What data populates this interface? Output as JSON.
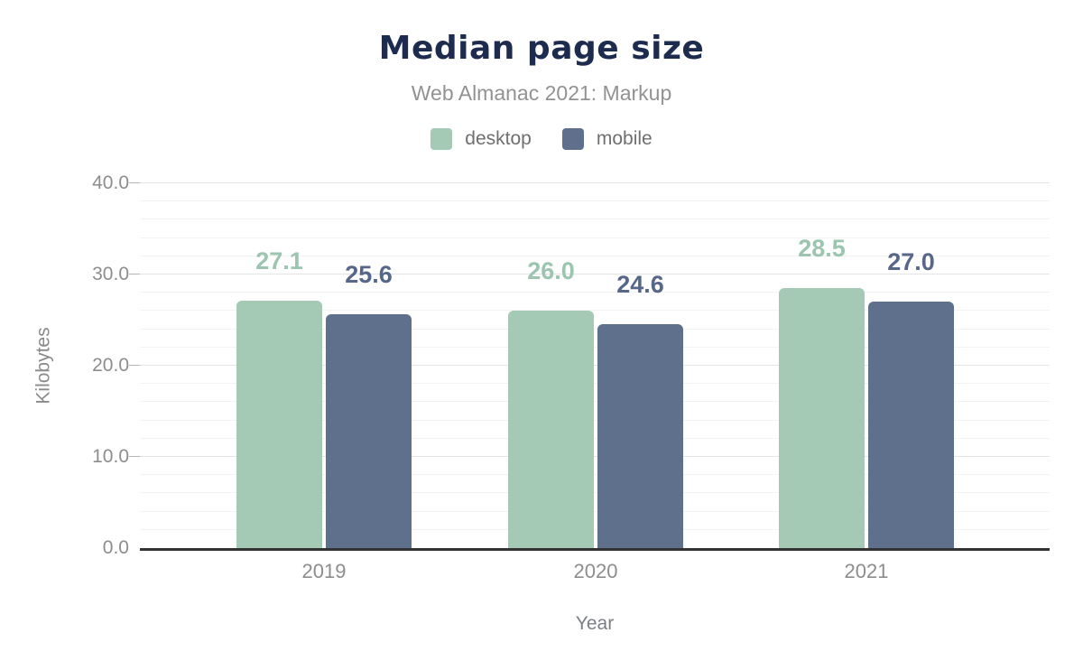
{
  "header": {
    "title": "Median page size",
    "subtitle": "Web Almanac 2021: Markup"
  },
  "chart_data": {
    "type": "bar",
    "title": "Median page size",
    "subtitle": "Web Almanac 2021: Markup",
    "categories": [
      "2019",
      "2020",
      "2021"
    ],
    "series": [
      {
        "name": "desktop",
        "color": "#a4c9b5",
        "label_color": "#9cc5b0",
        "values": [
          27.1,
          26.0,
          28.5
        ],
        "label_strings": [
          "27.1",
          "26.0",
          "28.5"
        ]
      },
      {
        "name": "mobile",
        "color": "#5f708c",
        "label_color": "#57678a",
        "values": [
          25.6,
          24.6,
          27.0
        ],
        "label_strings": [
          "25.6",
          "24.6",
          "27.0"
        ]
      }
    ],
    "xlabel": "Year",
    "ylabel": "Kilobytes",
    "ylim": [
      0,
      40
    ],
    "y_major_ticks": [
      0,
      10,
      20,
      30,
      40
    ],
    "y_tick_labels": [
      "0.0",
      "10.0",
      "20.0",
      "30.0",
      "40.0"
    ],
    "y_minor_step": 2,
    "grid": true,
    "legend_position": "top",
    "value_labels": true
  },
  "colors": {
    "title": "#1c2b4e",
    "subtitle": "#929292",
    "axis_line": "#333333",
    "grid_major": "#e4e4e4",
    "grid_minor": "#f3f3f3",
    "tick_text": "#8d8d8d",
    "axis_title_text": "#7b7f85",
    "background": "#ffffff"
  }
}
